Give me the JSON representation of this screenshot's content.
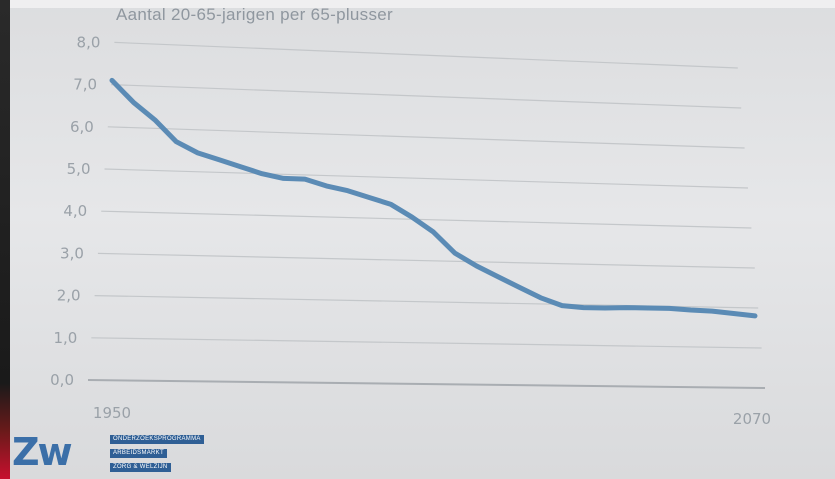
{
  "subtitle": "Aantal 20-65-jarigen per 65-plusser",
  "chart_data": {
    "type": "line",
    "title": "",
    "subtitle": "Aantal 20-65-jarigen per 65-plusser",
    "xlabel": "",
    "ylabel": "",
    "xlim": [
      1950,
      2070
    ],
    "ylim": [
      0,
      8
    ],
    "x_tick_labels": [
      "1950",
      "2070"
    ],
    "y_tick_labels": [
      "0,0",
      "1,0",
      "2,0",
      "3,0",
      "4,0",
      "5,0",
      "6,0",
      "7,0",
      "8,0"
    ],
    "grid": true,
    "legend": "none",
    "line_color": "#5b8bb5",
    "series": [
      {
        "x": [
          1950,
          1954,
          1958,
          1962,
          1966,
          1970,
          1974,
          1978,
          1982,
          1986,
          1990,
          1994,
          1998,
          2002,
          2006,
          2010,
          2014,
          2018,
          2022,
          2026,
          2030,
          2034,
          2038,
          2042,
          2046,
          2050,
          2054,
          2058,
          2062,
          2066,
          2070
        ],
        "y": [
          7.1,
          6.6,
          6.2,
          5.7,
          5.45,
          5.3,
          5.15,
          5.0,
          4.9,
          4.9,
          4.75,
          4.65,
          4.5,
          4.35,
          4.05,
          3.7,
          3.2,
          2.9,
          2.65,
          2.4,
          2.15,
          1.97,
          1.93,
          1.93,
          1.95,
          1.95,
          1.95,
          1.92,
          1.9,
          1.85,
          1.8
        ]
      }
    ]
  },
  "logo": {
    "mark": "Zw",
    "tags": [
      "ONDERZOEKSPROGRAMMA",
      "ARBEIDSMARKT",
      "ZORG & WELZIJN"
    ]
  },
  "colors": {
    "background": "#e3e4e6",
    "gridline": "#c4c7ca",
    "axis_text": "#9aa1a8",
    "line": "#5b8bb5",
    "logo_blue": "#2f5f95"
  }
}
